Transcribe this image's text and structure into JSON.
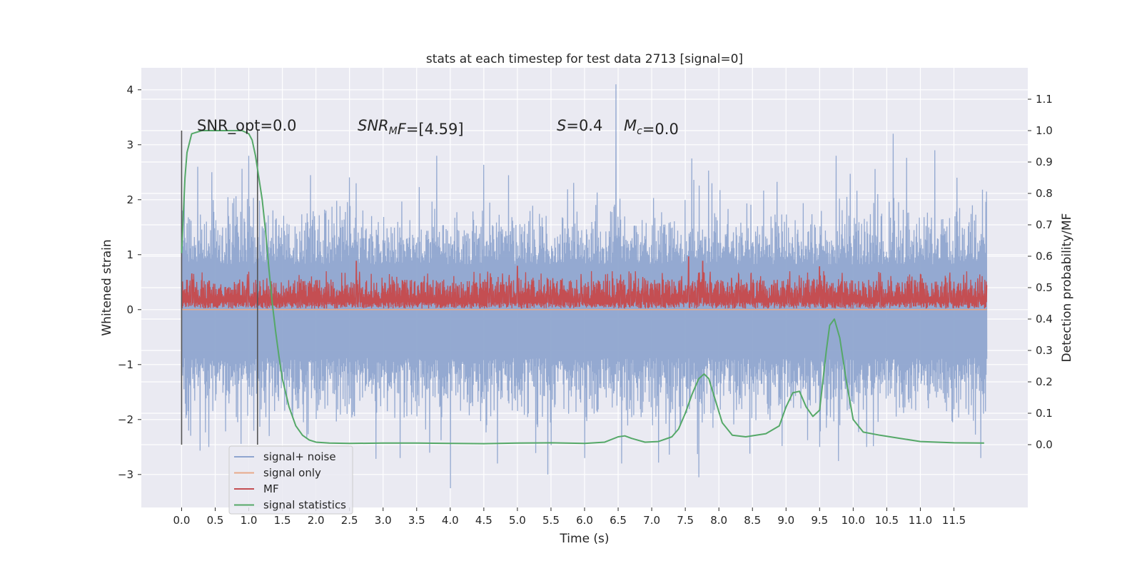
{
  "chart_data": {
    "type": "line",
    "title": "stats at each timestep for test data 2713 [signal=0]",
    "xlabel": "Time (s)",
    "ylabel_left": "Whitened strain",
    "ylabel_right": "Detection probability/MF",
    "xlim": [
      -0.6,
      12.6
    ],
    "ylim_left": [
      -3.6,
      4.4
    ],
    "ylim_right": [
      -0.2,
      1.2
    ],
    "x_ticks": [
      "0.0",
      "0.5",
      "1.0",
      "1.5",
      "2.0",
      "2.5",
      "3.0",
      "3.5",
      "4.0",
      "4.5",
      "5.0",
      "5.5",
      "6.0",
      "6.5",
      "7.0",
      "7.5",
      "8.0",
      "8.5",
      "9.0",
      "9.5",
      "10.0",
      "10.5",
      "11.0",
      "11.5"
    ],
    "y_ticks_left": [
      "4",
      "3",
      "2",
      "1",
      "0",
      "−1",
      "−2",
      "−3"
    ],
    "y_ticks_right": [
      "1.1",
      "1.0",
      "0.9",
      "0.8",
      "0.7",
      "0.6",
      "0.5",
      "0.4",
      "0.3",
      "0.2",
      "0.1",
      "0.0"
    ],
    "grid": true,
    "legend_position": "lower-left",
    "vertical_markers_x": [
      0.0,
      1.13
    ],
    "annotations": [
      {
        "kind": "plain",
        "text": "SNR_opt=0.0"
      },
      {
        "kind": "snr_mf",
        "sym": "SNR",
        "sub": "M",
        "tail": "F",
        "value": "=[4.59]"
      },
      {
        "kind": "s",
        "sym": "S",
        "value": "=0.4"
      },
      {
        "kind": "mc",
        "sym": "M",
        "sub": "c",
        "value": "=0.0"
      }
    ],
    "series": [
      {
        "name": "signal+ noise",
        "color": "#8fa5cf",
        "axis": "left",
        "x_range": [
          0.0,
          11.99
        ],
        "points": 2400,
        "envelope_upper_typical": 1.5,
        "envelope_lower_typical": -1.6,
        "spikes_upper": [
          [
            0.04,
            2.2
          ],
          [
            0.24,
            2.6
          ],
          [
            0.45,
            2.5
          ],
          [
            1.0,
            2.8
          ],
          [
            2.6,
            2.3
          ],
          [
            3.8,
            2.8
          ],
          [
            6.47,
            4.1
          ],
          [
            7.9,
            2.3
          ],
          [
            9.75,
            2.8
          ],
          [
            10.6,
            3.2
          ],
          [
            11.22,
            2.9
          ],
          [
            11.55,
            2.4
          ]
        ],
        "spikes_lower": [
          [
            0.1,
            -2.2
          ],
          [
            0.4,
            -2.5
          ],
          [
            1.3,
            -2.3
          ],
          [
            3.25,
            -2.7
          ],
          [
            4.0,
            -3.25
          ],
          [
            4.7,
            -2.8
          ],
          [
            5.45,
            -3.0
          ],
          [
            6.0,
            -2.7
          ],
          [
            6.55,
            -2.8
          ],
          [
            7.7,
            -3.05
          ],
          [
            9.5,
            -2.5
          ],
          [
            10.2,
            -2.5
          ],
          [
            11.9,
            -2.7
          ]
        ]
      },
      {
        "name": "signal only",
        "color": "#e8a98a",
        "axis": "left",
        "x": [
          0.0,
          11.99
        ],
        "y": [
          0.0,
          0.0
        ]
      },
      {
        "name": "MF",
        "color": "#c44e52",
        "axis": "left",
        "x_range": [
          0.0,
          11.99
        ],
        "points": 2400,
        "band_low": 0.02,
        "band_high": 0.55,
        "peaks": [
          [
            0.15,
            0.65
          ],
          [
            2.6,
            0.88
          ],
          [
            5.0,
            0.79
          ],
          [
            7.55,
            0.96
          ],
          [
            7.76,
            0.88
          ],
          [
            9.5,
            0.78
          ]
        ]
      },
      {
        "name": "signal statistics",
        "color": "#55a868",
        "axis": "right",
        "x": [
          0.0,
          0.05,
          0.08,
          0.15,
          0.3,
          0.6,
          0.9,
          1.0,
          1.05,
          1.1,
          1.15,
          1.2,
          1.25,
          1.3,
          1.35,
          1.4,
          1.45,
          1.5,
          1.6,
          1.7,
          1.8,
          1.9,
          2.0,
          2.2,
          2.5,
          3.0,
          3.5,
          4.0,
          4.5,
          5.0,
          5.5,
          6.0,
          6.3,
          6.5,
          6.6,
          6.7,
          6.9,
          7.1,
          7.3,
          7.4,
          7.5,
          7.6,
          7.7,
          7.78,
          7.85,
          7.95,
          8.05,
          8.2,
          8.4,
          8.7,
          8.9,
          9.0,
          9.1,
          9.2,
          9.3,
          9.4,
          9.5,
          9.6,
          9.65,
          9.72,
          9.8,
          9.9,
          10.0,
          10.15,
          10.4,
          10.7,
          11.0,
          11.5,
          11.95
        ],
        "y": [
          0.61,
          0.85,
          0.93,
          0.99,
          1.0,
          1.0,
          1.0,
          0.99,
          0.97,
          0.92,
          0.85,
          0.78,
          0.68,
          0.56,
          0.45,
          0.36,
          0.28,
          0.21,
          0.12,
          0.06,
          0.03,
          0.015,
          0.008,
          0.005,
          0.004,
          0.005,
          0.005,
          0.004,
          0.003,
          0.005,
          0.006,
          0.004,
          0.008,
          0.025,
          0.028,
          0.02,
          0.008,
          0.01,
          0.025,
          0.05,
          0.1,
          0.16,
          0.21,
          0.225,
          0.21,
          0.14,
          0.07,
          0.03,
          0.025,
          0.035,
          0.06,
          0.12,
          0.165,
          0.17,
          0.12,
          0.09,
          0.11,
          0.3,
          0.38,
          0.4,
          0.34,
          0.2,
          0.08,
          0.04,
          0.03,
          0.02,
          0.01,
          0.006,
          0.005
        ]
      }
    ]
  }
}
